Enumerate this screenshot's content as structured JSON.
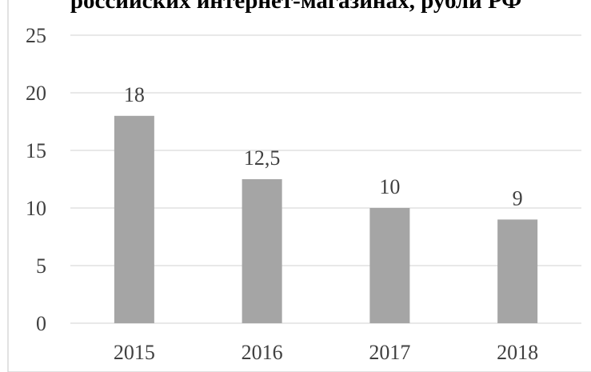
{
  "chart_data": {
    "type": "bar",
    "title": "российских интернет-магазинах, рубли РФ",
    "categories": [
      "2015",
      "2016",
      "2017",
      "2018"
    ],
    "values": [
      18,
      12.5,
      10,
      9
    ],
    "value_labels": [
      "18",
      "12,5",
      "10",
      "9"
    ],
    "color": "#a5a5a5",
    "ylim": [
      0,
      25
    ],
    "yticks": [
      0,
      5,
      10,
      15,
      20,
      25
    ],
    "grid": true
  }
}
